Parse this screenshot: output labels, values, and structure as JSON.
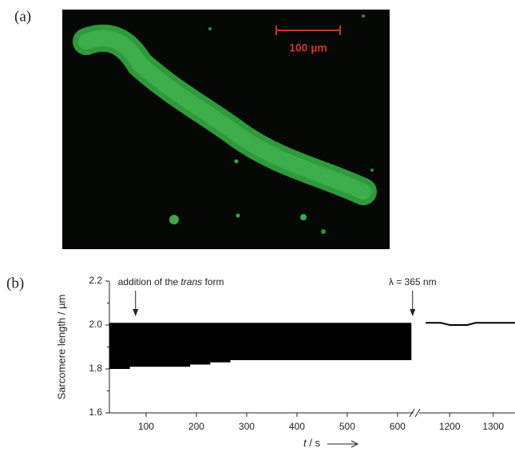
{
  "panel_labels": [
    "(a)",
    "(b)"
  ],
  "image": {
    "scale_bar_label": "100 µm"
  },
  "chart_data": {
    "type": "band",
    "ylabel": "Sarcomere length / µm",
    "xlabel": [
      "t",
      " / s"
    ],
    "ylim": [
      1.6,
      2.2
    ],
    "yticks": [
      1.6,
      1.8,
      {
        "value": 2.0,
        "label": "2.0"
      },
      2.2
    ],
    "yminor": [
      1.7,
      1.9,
      2.1
    ],
    "x_segments": [
      {
        "xlim": [
          27,
          632
        ],
        "xticks": [
          100,
          200,
          300,
          400,
          500,
          600
        ]
      },
      {
        "xlim": [
          1130,
          1350
        ],
        "xticks": [
          1200,
          1300
        ]
      }
    ],
    "color": "#000000",
    "series": [
      {
        "segment": 0,
        "x": [
          47,
          87,
          127,
          167,
          207,
          247,
          287,
          327,
          367,
          407,
          447,
          487,
          527,
          567,
          607
        ],
        "low": [
          1.8,
          1.81,
          1.81,
          1.81,
          1.82,
          1.83,
          1.84,
          1.84,
          1.84,
          1.84,
          1.84,
          1.84,
          1.84,
          1.84,
          1.84
        ],
        "high": [
          2.01,
          2.01,
          2.01,
          2.01,
          2.01,
          2.01,
          2.01,
          2.01,
          2.01,
          2.01,
          2.01,
          2.01,
          2.01,
          2.01,
          2.01
        ]
      },
      {
        "segment": 1,
        "x": [
          1145,
          1180,
          1200,
          1215,
          1240,
          1260,
          1300,
          1350
        ],
        "values": [
          2.01,
          2.01,
          2.0,
          2.0,
          2.0,
          2.01,
          2.01,
          2.01
        ]
      }
    ],
    "annotations": [
      {
        "text": [
          "addition of the ",
          "trans",
          " form"
        ],
        "x": 79
      },
      {
        "text": [
          "λ = 365 nm"
        ],
        "x": 630
      }
    ]
  }
}
